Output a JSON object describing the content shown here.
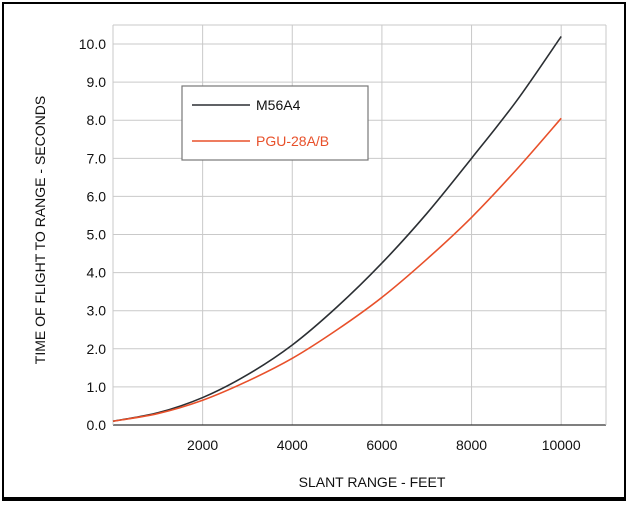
{
  "chart_data": {
    "type": "line",
    "xlabel": "SLANT RANGE - FEET",
    "ylabel": "TIME OF FLIGHT TO RANGE - SECONDS",
    "xlim": [
      0,
      11000
    ],
    "ylim": [
      0,
      10.5
    ],
    "x_ticks": [
      2000,
      4000,
      6000,
      8000,
      10000
    ],
    "x_tick_labels": [
      "2000",
      "4000",
      "6000",
      "8000",
      "10000"
    ],
    "y_ticks": [
      0,
      1,
      2,
      3,
      4,
      5,
      6,
      7,
      8,
      9,
      10
    ],
    "y_tick_labels": [
      "0.0",
      "1.0",
      "2.0",
      "3.0",
      "4.0",
      "5.0",
      "6.0",
      "7.0",
      "8.0",
      "9.0",
      "10.0"
    ],
    "grid": true,
    "legend_position": "top-left",
    "series": [
      {
        "name": "M56A4",
        "color": "#2b2f33",
        "x": [
          0,
          1000,
          2000,
          3000,
          4000,
          5000,
          6000,
          7000,
          8000,
          9000,
          10000
        ],
        "y": [
          0.1,
          0.32,
          0.72,
          1.32,
          2.1,
          3.1,
          4.25,
          5.55,
          7.0,
          8.5,
          10.2
        ]
      },
      {
        "name": "PGU-28A/B",
        "color": "#e8502a",
        "x": [
          0,
          1000,
          2000,
          3000,
          4000,
          5000,
          6000,
          7000,
          8000,
          9000,
          10000
        ],
        "y": [
          0.1,
          0.3,
          0.65,
          1.15,
          1.75,
          2.5,
          3.35,
          4.35,
          5.45,
          6.7,
          8.05
        ]
      }
    ]
  }
}
